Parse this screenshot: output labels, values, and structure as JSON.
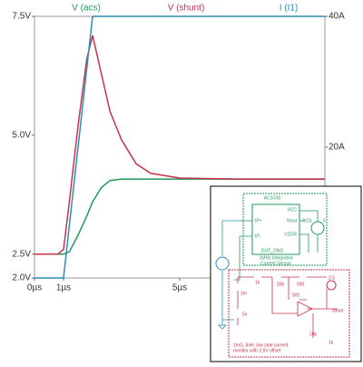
{
  "chart_data": {
    "type": "line",
    "x": [
      0,
      0.8,
      1.0,
      1.2,
      1.5,
      1.8,
      2.0,
      2.3,
      2.6,
      3.0,
      3.5,
      4.0,
      5.0,
      7.0,
      10.0
    ],
    "series": [
      {
        "name": "V (acs)",
        "color": "#1e9a5a",
        "values": [
          2.5,
          2.5,
          2.5,
          2.55,
          2.9,
          3.3,
          3.6,
          3.9,
          4.05,
          4.08,
          4.08,
          4.08,
          4.08,
          4.08,
          4.08
        ]
      },
      {
        "name": "V (shunt)",
        "color": "#c8324a",
        "values": [
          2.5,
          2.5,
          2.6,
          3.6,
          5.2,
          6.6,
          7.1,
          6.3,
          5.5,
          4.9,
          4.4,
          4.2,
          4.1,
          4.08,
          4.08
        ]
      },
      {
        "name": "I (I1)",
        "color": "#2a8fb0",
        "axis": "y2",
        "values": [
          0,
          0,
          0,
          8,
          20,
          32,
          40,
          40,
          40,
          40,
          40,
          40,
          40,
          40,
          40
        ]
      }
    ],
    "xlim": [
      0,
      10
    ],
    "xticks": [
      {
        "value": 0,
        "label": "0µs"
      },
      {
        "value": 1,
        "label": "1µs"
      },
      {
        "value": 5,
        "label": "5µs"
      }
    ],
    "ylim": [
      2.0,
      7.5
    ],
    "yticks": [
      {
        "value": 2.0,
        "label": "2.0V"
      },
      {
        "value": 2.5,
        "label": "2.5V"
      },
      {
        "value": 5.0,
        "label": "5.0V"
      },
      {
        "value": 7.5,
        "label": "7.5V"
      }
    ],
    "y2lim": [
      0,
      40
    ],
    "y2ticks": [
      {
        "value": 20,
        "label": "20A"
      },
      {
        "value": 40,
        "label": "40A"
      }
    ]
  },
  "schematic": {
    "sensor": {
      "name": "ACS730",
      "vcc": "VCC",
      "viout": "Viout",
      "net": "ACS",
      "vzcr": "VZCR",
      "ipp": "IP+",
      "ipm": "IP-",
      "gnd": "DUT_GND",
      "supply": "5",
      "caption": [
        "1MHz Integrated",
        "Current Sensor"
      ]
    },
    "monitor": {
      "r_shunt": "1m",
      "l_shunt": "5n",
      "r_in": "1k",
      "r_fb": "20k",
      "r_div1": "500",
      "r_div2": "500",
      "v_ref": "2.5",
      "net": "shunt",
      "r_out": "20k",
      "r_gnd": "1k",
      "caption": [
        "1mΩ, 5nH, low side current",
        "monitor with 2.5V offset"
      ]
    }
  }
}
